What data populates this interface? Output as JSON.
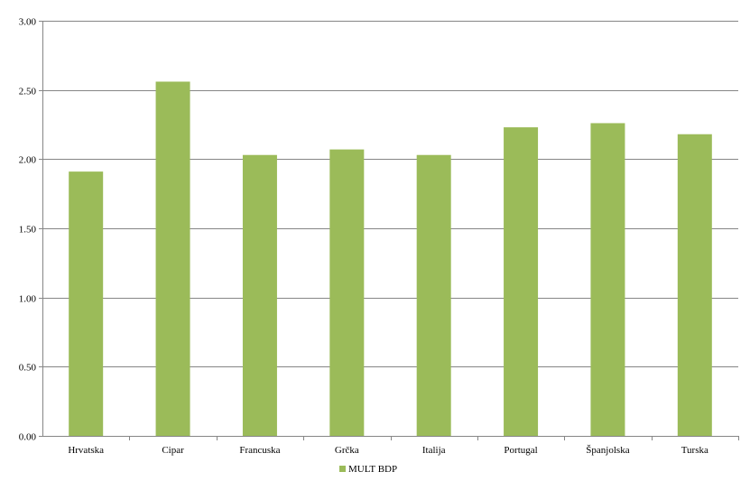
{
  "chart_data": {
    "type": "bar",
    "categories": [
      "Hrvatska",
      "Cipar",
      "Francuska",
      "Grčka",
      "Italija",
      "Portugal",
      "Španjolska",
      "Turska"
    ],
    "series": [
      {
        "name": "MULT BDP",
        "color": "#9bbb59",
        "values": [
          1.91,
          2.56,
          2.03,
          2.07,
          2.03,
          2.23,
          2.26,
          2.18
        ]
      }
    ],
    "ylim": [
      0,
      3
    ],
    "yticks": [
      "0.00",
      "0.50",
      "1.00",
      "1.50",
      "2.00",
      "2.50",
      "3.00"
    ],
    "grid": true,
    "legend_position": "bottom"
  }
}
